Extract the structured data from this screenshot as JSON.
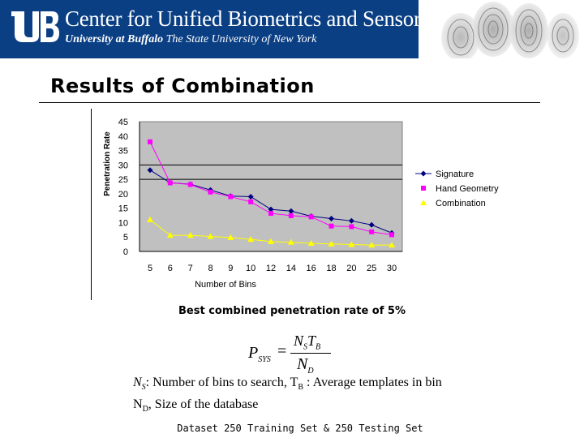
{
  "header": {
    "title": "Center for Unified Biometrics and Sensors",
    "subtitle_bold": "University at Buffalo",
    "subtitle_rest": " The State University of New York"
  },
  "slide": {
    "title": "Results of Combination",
    "note": "Best combined penetration rate of 5%",
    "dataset": "Dataset 250 Training Set & 250 Testing Set"
  },
  "definitions": {
    "line1": ": Number of bins to search, T",
    "line1_sub": "B",
    "line1_rest": " : Average templates in bin",
    "line2_sym": "N",
    "line2_sub": "D",
    "line2_rest": ", Size of the database"
  },
  "colors": {
    "banner": "#0b3f84",
    "plot_bg": "#c0c0c0",
    "signature": "#000080",
    "hand_geometry": "#ff00ff",
    "combination": "#ffff00"
  },
  "chart_data": {
    "type": "line",
    "title": "",
    "xlabel": "Number of Bins",
    "ylabel": "Penetration Rate",
    "ylim": [
      0,
      45
    ],
    "yticks": [
      0,
      5,
      10,
      15,
      20,
      25,
      30,
      35,
      40,
      45
    ],
    "categories": [
      "5",
      "6",
      "7",
      "8",
      "9",
      "10",
      "12",
      "14",
      "16",
      "18",
      "20",
      "25",
      "30"
    ],
    "reference_lines": [
      25,
      30
    ],
    "grid": false,
    "legend_position": "right",
    "series": [
      {
        "name": "Signature",
        "marker": "diamond",
        "values": [
          28.2,
          23.8,
          23.3,
          21.3,
          19.2,
          19.0,
          14.6,
          14.0,
          12.2,
          11.4,
          10.6,
          9.2,
          6.4
        ]
      },
      {
        "name": "Hand Geometry",
        "marker": "square",
        "values": [
          38.0,
          23.8,
          23.2,
          20.6,
          19.0,
          17.2,
          13.2,
          12.4,
          12.0,
          8.8,
          8.6,
          6.8,
          5.8
        ]
      },
      {
        "name": "Combination",
        "marker": "triangle",
        "values": [
          11.0,
          5.6,
          5.6,
          5.2,
          4.8,
          4.2,
          3.4,
          3.2,
          2.8,
          2.6,
          2.4,
          2.2,
          2.2
        ]
      }
    ]
  }
}
